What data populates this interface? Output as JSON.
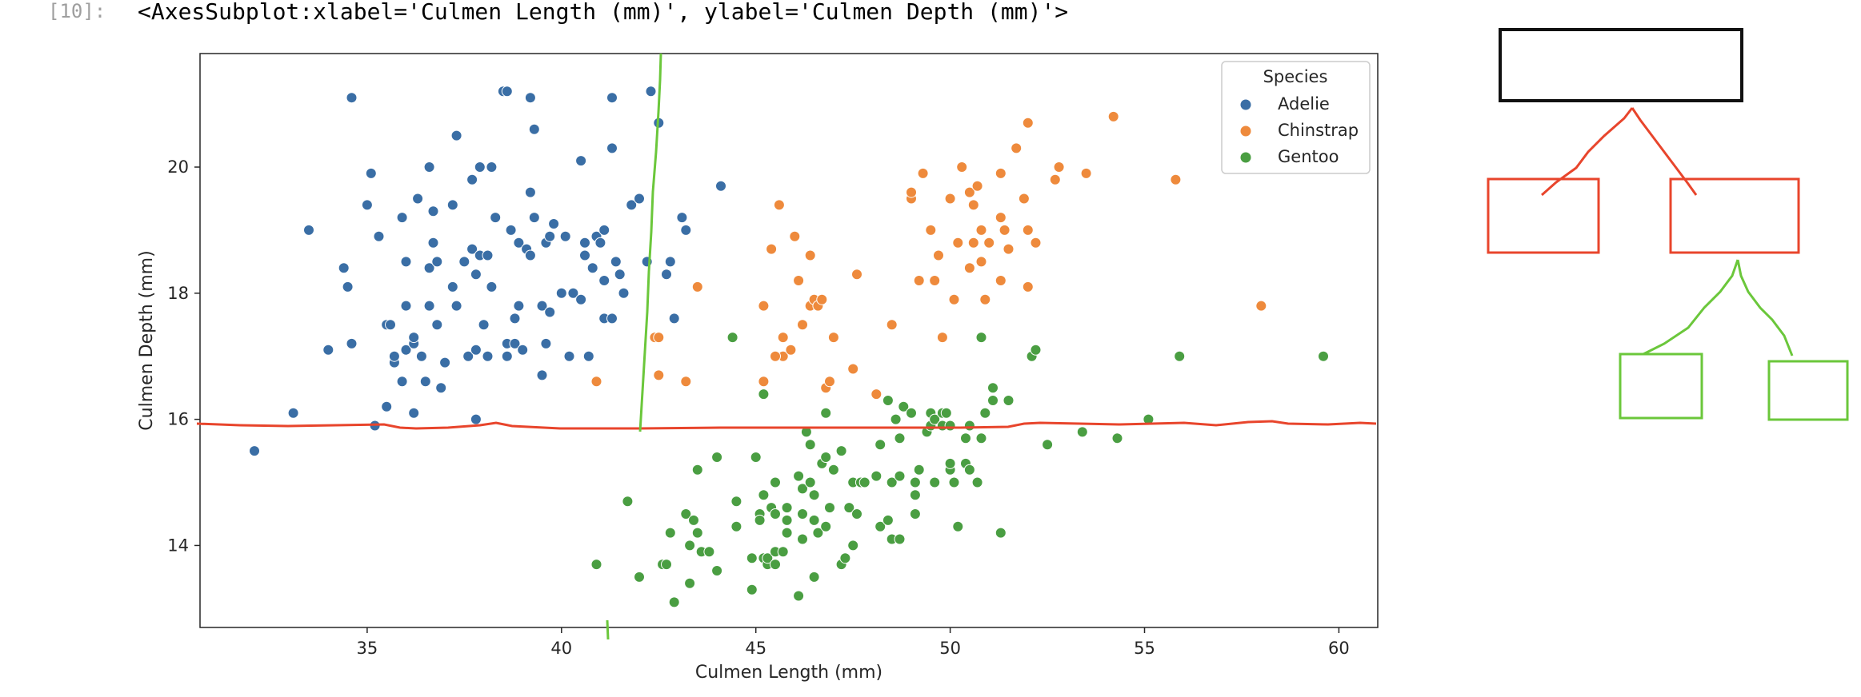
{
  "cell": {
    "prompt": "[10]:",
    "output_repr": "<AxesSubplot:xlabel='Culmen Length (mm)', ylabel='Culmen Depth (mm)'>"
  },
  "chart_data": {
    "type": "scatter",
    "title": "",
    "xlabel": "Culmen Length (mm)",
    "ylabel": "Culmen Depth (mm)",
    "xlim": [
      30.7,
      61
    ],
    "ylim": [
      12.7,
      21.8
    ],
    "xticks": [
      35,
      40,
      45,
      50,
      55,
      60
    ],
    "yticks": [
      14,
      16,
      18,
      20
    ],
    "grid": false,
    "legend": {
      "title": "Species",
      "placement": "top-right"
    },
    "series": [
      {
        "name": "Adelie",
        "color": "#3a6ea5",
        "points": [
          [
            34.6,
            21.1
          ],
          [
            38.5,
            21.2
          ],
          [
            39.2,
            21.1
          ],
          [
            41.3,
            21.1
          ],
          [
            42.3,
            21.2
          ],
          [
            32.1,
            15.5
          ],
          [
            33.1,
            16.1
          ],
          [
            33.5,
            19.0
          ],
          [
            34.0,
            17.1
          ],
          [
            34.4,
            18.4
          ],
          [
            34.5,
            18.1
          ],
          [
            34.6,
            17.2
          ],
          [
            35.0,
            19.4
          ],
          [
            35.1,
            19.9
          ],
          [
            35.2,
            15.9
          ],
          [
            35.3,
            18.9
          ],
          [
            35.5,
            16.2
          ],
          [
            35.5,
            17.5
          ],
          [
            35.6,
            17.5
          ],
          [
            35.7,
            16.9
          ],
          [
            35.7,
            17.0
          ],
          [
            35.9,
            16.6
          ],
          [
            35.9,
            19.2
          ],
          [
            36.0,
            17.1
          ],
          [
            36.0,
            17.8
          ],
          [
            36.0,
            18.5
          ],
          [
            36.2,
            16.1
          ],
          [
            36.2,
            17.2
          ],
          [
            36.2,
            17.3
          ],
          [
            36.3,
            19.5
          ],
          [
            36.4,
            17.0
          ],
          [
            36.5,
            16.6
          ],
          [
            36.6,
            17.8
          ],
          [
            36.6,
            18.4
          ],
          [
            36.7,
            18.8
          ],
          [
            36.7,
            19.3
          ],
          [
            36.8,
            18.5
          ],
          [
            36.9,
            16.5
          ],
          [
            37.0,
            16.9
          ],
          [
            37.2,
            18.1
          ],
          [
            37.2,
            19.4
          ],
          [
            37.3,
            20.5
          ],
          [
            37.3,
            17.8
          ],
          [
            37.5,
            18.5
          ],
          [
            37.6,
            17.0
          ],
          [
            37.7,
            18.7
          ],
          [
            37.7,
            19.8
          ],
          [
            37.8,
            16.0
          ],
          [
            37.8,
            17.1
          ],
          [
            37.8,
            18.3
          ],
          [
            37.9,
            18.6
          ],
          [
            38.1,
            17.0
          ],
          [
            38.1,
            18.6
          ],
          [
            38.2,
            18.1
          ],
          [
            38.3,
            19.2
          ],
          [
            38.6,
            17.0
          ],
          [
            38.6,
            17.2
          ],
          [
            38.6,
            21.2
          ],
          [
            38.7,
            19.0
          ],
          [
            38.8,
            17.2
          ],
          [
            38.8,
            17.6
          ],
          [
            38.9,
            17.8
          ],
          [
            38.9,
            18.8
          ],
          [
            39.0,
            17.1
          ],
          [
            39.1,
            18.7
          ],
          [
            39.2,
            18.6
          ],
          [
            39.3,
            20.6
          ],
          [
            39.5,
            16.7
          ],
          [
            39.5,
            17.8
          ],
          [
            39.6,
            17.2
          ],
          [
            39.6,
            18.8
          ],
          [
            39.7,
            17.7
          ],
          [
            39.7,
            18.9
          ],
          [
            39.8,
            19.1
          ],
          [
            40.1,
            18.9
          ],
          [
            40.2,
            17.0
          ],
          [
            40.3,
            18.0
          ],
          [
            40.5,
            17.9
          ],
          [
            40.6,
            18.6
          ],
          [
            40.6,
            18.8
          ],
          [
            40.7,
            17.0
          ],
          [
            40.8,
            18.4
          ],
          [
            40.9,
            16.6
          ],
          [
            40.9,
            18.9
          ],
          [
            41.1,
            17.6
          ],
          [
            41.1,
            18.2
          ],
          [
            41.3,
            17.6
          ],
          [
            41.4,
            18.5
          ],
          [
            41.5,
            18.3
          ],
          [
            41.6,
            18.0
          ],
          [
            41.8,
            19.4
          ],
          [
            42.0,
            19.5
          ],
          [
            42.2,
            18.5
          ],
          [
            42.5,
            20.7
          ],
          [
            42.7,
            18.3
          ],
          [
            42.8,
            18.5
          ],
          [
            42.9,
            17.6
          ],
          [
            43.1,
            19.2
          ],
          [
            43.2,
            19.0
          ],
          [
            44.1,
            19.7
          ],
          [
            38.2,
            20.0
          ],
          [
            39.2,
            19.6
          ],
          [
            40.5,
            20.1
          ],
          [
            41.3,
            20.3
          ],
          [
            37.9,
            20.0
          ],
          [
            36.6,
            20.0
          ],
          [
            41.1,
            19.0
          ],
          [
            36.8,
            17.5
          ],
          [
            38.0,
            17.5
          ],
          [
            39.3,
            19.2
          ],
          [
            40.0,
            18.0
          ],
          [
            41.0,
            18.8
          ]
        ]
      },
      {
        "name": "Chinstrap",
        "color": "#ee8a3c",
        "points": [
          [
            40.9,
            16.6
          ],
          [
            42.4,
            17.3
          ],
          [
            42.5,
            16.7
          ],
          [
            42.5,
            17.3
          ],
          [
            43.2,
            16.6
          ],
          [
            43.5,
            18.1
          ],
          [
            45.2,
            16.6
          ],
          [
            45.2,
            17.8
          ],
          [
            45.4,
            18.7
          ],
          [
            45.5,
            17.0
          ],
          [
            45.6,
            19.4
          ],
          [
            45.7,
            17.0
          ],
          [
            45.7,
            17.3
          ],
          [
            45.9,
            17.1
          ],
          [
            46.0,
            18.9
          ],
          [
            46.1,
            18.2
          ],
          [
            46.2,
            17.5
          ],
          [
            46.4,
            17.8
          ],
          [
            46.4,
            18.6
          ],
          [
            46.5,
            17.9
          ],
          [
            46.6,
            17.8
          ],
          [
            46.7,
            17.9
          ],
          [
            46.8,
            16.5
          ],
          [
            46.9,
            16.6
          ],
          [
            47.0,
            17.3
          ],
          [
            47.5,
            16.8
          ],
          [
            47.6,
            18.3
          ],
          [
            48.1,
            16.4
          ],
          [
            48.5,
            17.5
          ],
          [
            49.0,
            19.5
          ],
          [
            49.0,
            19.6
          ],
          [
            49.2,
            18.2
          ],
          [
            49.3,
            19.9
          ],
          [
            49.5,
            19.0
          ],
          [
            49.6,
            18.2
          ],
          [
            49.7,
            18.6
          ],
          [
            49.8,
            17.3
          ],
          [
            50.0,
            19.5
          ],
          [
            50.1,
            17.9
          ],
          [
            50.2,
            18.8
          ],
          [
            50.3,
            20.0
          ],
          [
            50.5,
            18.4
          ],
          [
            50.5,
            19.6
          ],
          [
            50.6,
            19.4
          ],
          [
            50.7,
            19.7
          ],
          [
            50.8,
            18.5
          ],
          [
            50.8,
            19.0
          ],
          [
            50.9,
            17.9
          ],
          [
            51.0,
            18.8
          ],
          [
            51.3,
            18.2
          ],
          [
            51.3,
            19.2
          ],
          [
            51.3,
            19.9
          ],
          [
            51.4,
            19.0
          ],
          [
            51.5,
            18.7
          ],
          [
            51.7,
            20.3
          ],
          [
            51.9,
            19.5
          ],
          [
            52.0,
            18.1
          ],
          [
            52.0,
            19.0
          ],
          [
            52.0,
            20.7
          ],
          [
            52.2,
            18.8
          ],
          [
            52.7,
            19.8
          ],
          [
            52.8,
            20.0
          ],
          [
            53.5,
            19.9
          ],
          [
            54.2,
            20.8
          ],
          [
            55.8,
            19.8
          ],
          [
            58.0,
            17.8
          ],
          [
            45.5,
            17.0
          ],
          [
            47.0,
            17.3
          ],
          [
            50.6,
            18.8
          ]
        ]
      },
      {
        "name": "Gentoo",
        "color": "#4a9e42",
        "points": [
          [
            40.9,
            13.7
          ],
          [
            41.7,
            14.7
          ],
          [
            42.0,
            13.5
          ],
          [
            42.6,
            13.7
          ],
          [
            42.7,
            13.7
          ],
          [
            42.8,
            14.2
          ],
          [
            42.9,
            13.1
          ],
          [
            43.2,
            14.5
          ],
          [
            43.3,
            13.4
          ],
          [
            43.3,
            14.0
          ],
          [
            43.4,
            14.4
          ],
          [
            43.5,
            14.2
          ],
          [
            43.5,
            15.2
          ],
          [
            43.6,
            13.9
          ],
          [
            43.8,
            13.9
          ],
          [
            44.0,
            13.6
          ],
          [
            44.4,
            17.3
          ],
          [
            44.5,
            14.3
          ],
          [
            44.5,
            14.7
          ],
          [
            44.9,
            13.3
          ],
          [
            44.9,
            13.8
          ],
          [
            45.0,
            15.4
          ],
          [
            45.1,
            14.5
          ],
          [
            45.1,
            14.4
          ],
          [
            45.2,
            13.8
          ],
          [
            45.2,
            14.8
          ],
          [
            45.2,
            16.4
          ],
          [
            45.3,
            13.7
          ],
          [
            45.3,
            13.8
          ],
          [
            45.4,
            14.6
          ],
          [
            45.5,
            13.7
          ],
          [
            45.5,
            13.9
          ],
          [
            45.5,
            14.5
          ],
          [
            45.5,
            15.0
          ],
          [
            45.7,
            13.9
          ],
          [
            45.8,
            14.2
          ],
          [
            45.8,
            14.6
          ],
          [
            46.1,
            13.2
          ],
          [
            46.1,
            15.1
          ],
          [
            46.2,
            14.1
          ],
          [
            46.2,
            14.5
          ],
          [
            46.2,
            14.9
          ],
          [
            46.3,
            15.8
          ],
          [
            46.4,
            15.0
          ],
          [
            46.4,
            15.6
          ],
          [
            46.5,
            13.5
          ],
          [
            46.5,
            14.4
          ],
          [
            46.5,
            14.8
          ],
          [
            46.6,
            14.2
          ],
          [
            46.7,
            15.3
          ],
          [
            46.8,
            14.3
          ],
          [
            46.8,
            15.4
          ],
          [
            46.8,
            16.1
          ],
          [
            46.9,
            14.6
          ],
          [
            47.2,
            13.7
          ],
          [
            47.2,
            15.5
          ],
          [
            47.3,
            13.8
          ],
          [
            47.4,
            14.6
          ],
          [
            47.5,
            14.0
          ],
          [
            47.5,
            15.0
          ],
          [
            47.6,
            14.5
          ],
          [
            47.7,
            15.0
          ],
          [
            47.8,
            15.0
          ],
          [
            48.1,
            15.1
          ],
          [
            48.2,
            14.3
          ],
          [
            48.2,
            15.6
          ],
          [
            48.4,
            14.4
          ],
          [
            48.4,
            16.3
          ],
          [
            48.5,
            14.1
          ],
          [
            48.5,
            15.0
          ],
          [
            48.6,
            16.0
          ],
          [
            48.7,
            14.1
          ],
          [
            48.7,
            15.1
          ],
          [
            48.7,
            15.7
          ],
          [
            48.8,
            16.2
          ],
          [
            49.0,
            16.1
          ],
          [
            49.1,
            14.5
          ],
          [
            49.1,
            14.8
          ],
          [
            49.1,
            15.0
          ],
          [
            49.2,
            15.2
          ],
          [
            49.4,
            15.8
          ],
          [
            49.5,
            15.9
          ],
          [
            49.5,
            16.1
          ],
          [
            49.6,
            15.0
          ],
          [
            49.6,
            16.0
          ],
          [
            49.8,
            15.9
          ],
          [
            49.8,
            16.1
          ],
          [
            49.9,
            16.1
          ],
          [
            50.0,
            15.2
          ],
          [
            50.0,
            15.3
          ],
          [
            50.0,
            15.9
          ],
          [
            50.1,
            15.0
          ],
          [
            50.2,
            14.3
          ],
          [
            50.4,
            15.3
          ],
          [
            50.4,
            15.7
          ],
          [
            50.5,
            15.2
          ],
          [
            50.5,
            15.9
          ],
          [
            50.7,
            15.0
          ],
          [
            50.8,
            15.7
          ],
          [
            50.8,
            17.3
          ],
          [
            50.9,
            16.1
          ],
          [
            51.1,
            16.3
          ],
          [
            51.1,
            16.5
          ],
          [
            51.3,
            14.2
          ],
          [
            51.5,
            16.3
          ],
          [
            52.1,
            17.0
          ],
          [
            52.2,
            17.1
          ],
          [
            52.5,
            15.6
          ],
          [
            53.4,
            15.8
          ],
          [
            54.3,
            15.7
          ],
          [
            55.1,
            16.0
          ],
          [
            55.9,
            17.0
          ],
          [
            59.6,
            17.0
          ],
          [
            48.2,
            15.6
          ],
          [
            47.0,
            15.2
          ],
          [
            45.8,
            14.4
          ],
          [
            44.0,
            15.4
          ]
        ]
      }
    ]
  },
  "overlay": {
    "red_color": "#e8452c",
    "green_color": "#6bc73b",
    "black_color": "#111111"
  }
}
